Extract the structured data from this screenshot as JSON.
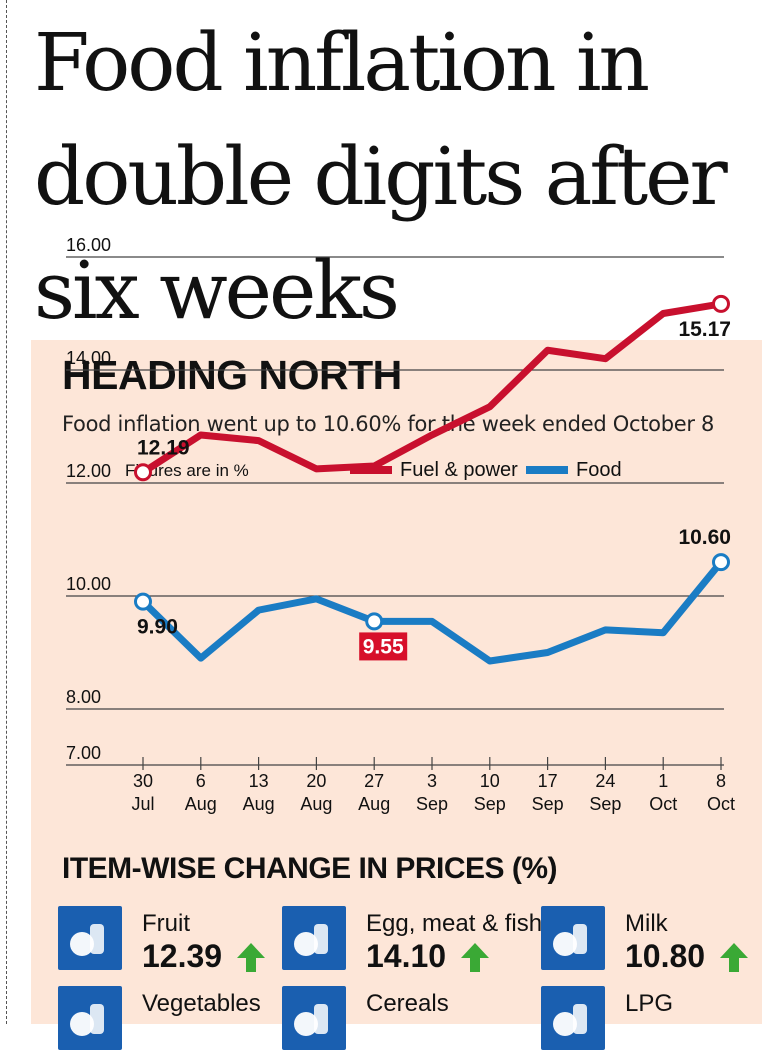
{
  "headline": "Food inflation in double digits after six weeks",
  "chart_data": {
    "type": "line",
    "title": "HEADING NORTH",
    "subtitle": "Food inflation went up to 10.60% for the week ended October 8",
    "note": "Figures are in %",
    "categories": [
      [
        "30",
        "Jul"
      ],
      [
        "6",
        "Aug"
      ],
      [
        "13",
        "Aug"
      ],
      [
        "20",
        "Aug"
      ],
      [
        "27",
        "Aug"
      ],
      [
        "3",
        "Sep"
      ],
      [
        "10",
        "Sep"
      ],
      [
        "17",
        "Sep"
      ],
      [
        "24",
        "Sep"
      ],
      [
        "1",
        "Oct"
      ],
      [
        "8",
        "Oct"
      ]
    ],
    "y_ticks": [
      "16.00",
      "14.00",
      "12.00",
      "10.00",
      "8.00",
      "7.00"
    ],
    "ylim": [
      7,
      16
    ],
    "grid": true,
    "legend_position": "top",
    "series": [
      {
        "name": "Fuel & power",
        "color": "#c8102e",
        "values": [
          12.19,
          12.85,
          12.75,
          12.25,
          12.3,
          12.85,
          13.35,
          14.35,
          14.2,
          15.0,
          15.17
        ]
      },
      {
        "name": "Food",
        "color": "#1a7cc4",
        "values": [
          9.9,
          8.9,
          9.75,
          9.95,
          9.55,
          9.55,
          8.85,
          9.0,
          9.4,
          9.35,
          10.6
        ]
      }
    ],
    "annotations": [
      {
        "series": 0,
        "index": 0,
        "text": "12.19",
        "position": "above",
        "boxed": false
      },
      {
        "series": 0,
        "index": 10,
        "text": "15.17",
        "position": "below",
        "boxed": false
      },
      {
        "series": 1,
        "index": 0,
        "text": "9.90",
        "position": "below",
        "boxed": false
      },
      {
        "series": 1,
        "index": 4,
        "text": "9.55",
        "position": "below",
        "boxed": true
      },
      {
        "series": 1,
        "index": 10,
        "text": "10.60",
        "position": "above",
        "boxed": false
      }
    ],
    "markers": [
      {
        "series": 0,
        "index": 0
      },
      {
        "series": 0,
        "index": 10
      },
      {
        "series": 1,
        "index": 0
      },
      {
        "series": 1,
        "index": 4
      },
      {
        "series": 1,
        "index": 10
      }
    ]
  },
  "items_section": {
    "title": "ITEM-WISE CHANGE IN PRICES (%)",
    "items": [
      {
        "name": "Fruit",
        "value": "12.39",
        "icon": "fruit-icon",
        "trend": "up"
      },
      {
        "name": "Egg, meat & fish",
        "value": "14.10",
        "icon": "egg-meat-fish-icon",
        "trend": "up"
      },
      {
        "name": "Milk",
        "value": "10.80",
        "icon": "milk-icon",
        "trend": "up"
      },
      {
        "name": "Vegetables",
        "value": "",
        "icon": "vegetables-icon",
        "trend": "up"
      },
      {
        "name": "Cereals",
        "value": "",
        "icon": "cereals-icon",
        "trend": ""
      },
      {
        "name": "LPG",
        "value": "",
        "icon": "lpg-icon",
        "trend": ""
      }
    ],
    "colors": {
      "icon_bg": "#1a5fb0",
      "arrow_up": "#3aa935"
    }
  }
}
